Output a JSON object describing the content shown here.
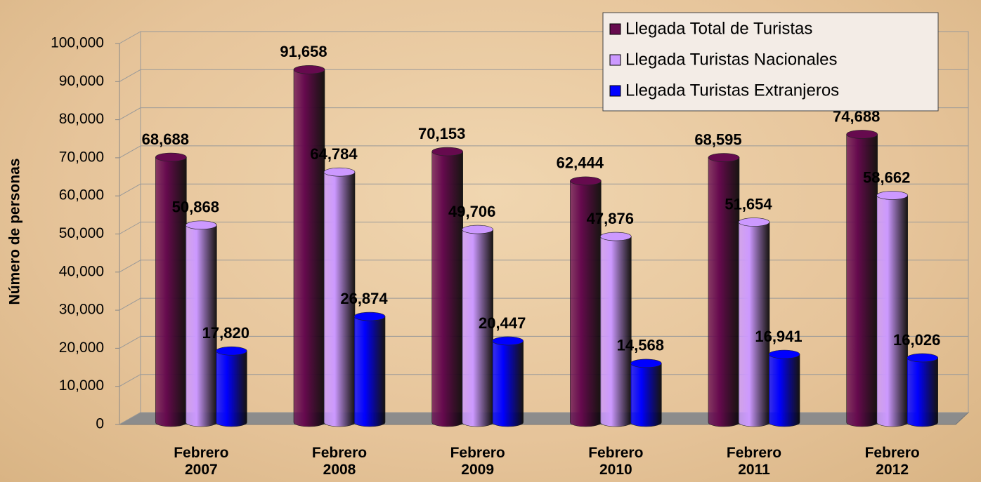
{
  "chart_data": {
    "type": "bar",
    "y_axis_label": "Número de personas",
    "categories": [
      "Febrero 2007",
      "Febrero 2008",
      "Febrero 2009",
      "Febrero 2010",
      "Febrero 2011",
      "Febrero 2012"
    ],
    "series": [
      {
        "name": "Llegada Total de Turistas",
        "color": "#660a4e",
        "values": [
          68688,
          91658,
          70153,
          62444,
          68595,
          74688
        ],
        "value_labels": [
          "68,688",
          "91,658",
          "70,153",
          "62,444",
          "68,595",
          "74,688"
        ]
      },
      {
        "name": "Llegada Turistas Nacionales",
        "color": "#cc99ff",
        "values": [
          50868,
          64784,
          49706,
          47876,
          51654,
          58662
        ],
        "value_labels": [
          "50,868",
          "64,784",
          "49,706",
          "47,876",
          "51,654",
          "58,662"
        ]
      },
      {
        "name": "Llegada Turistas Extranjeros",
        "color": "#0000ff",
        "values": [
          17820,
          26874,
          20447,
          14568,
          16941,
          16026
        ],
        "value_labels": [
          "17,820",
          "26,874",
          "20,447",
          "14,568",
          "16,941",
          "16,026"
        ]
      }
    ],
    "ylim": [
      0,
      100000
    ],
    "yticks": [
      0,
      {
        "value": 10000,
        "label": "10,000"
      },
      {
        "value": 20000,
        "label": "20,000"
      },
      {
        "value": 30000,
        "label": "30,000"
      },
      {
        "value": 40000,
        "label": "40,000"
      },
      {
        "value": 50000,
        "label": "50,000"
      },
      {
        "value": 60000,
        "label": "60,000"
      },
      {
        "value": 70000,
        "label": "70,000"
      },
      {
        "value": 80000,
        "label": "80,000"
      },
      {
        "value": 90000,
        "label": "90,000"
      },
      {
        "value": 100000,
        "label": "100,000"
      }
    ],
    "grid": true,
    "legend": "top-right"
  }
}
